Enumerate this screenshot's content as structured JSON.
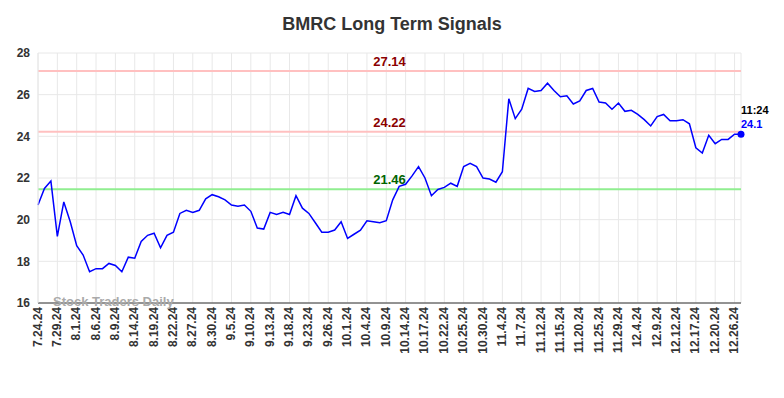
{
  "chart_data": {
    "type": "line",
    "title": "BMRC Long Term Signals",
    "categories": [
      "7.24.24",
      null,
      null,
      "7.29.24",
      null,
      null,
      "8.1.24",
      null,
      null,
      "8.6.24",
      null,
      null,
      "8.9.24",
      null,
      null,
      "8.14.24",
      null,
      null,
      "8.19.24",
      null,
      null,
      "8.22.24",
      null,
      null,
      "8.27.24",
      null,
      null,
      "8.30.24",
      null,
      null,
      "9.5.24",
      null,
      null,
      "9.10.24",
      null,
      null,
      "9.13.24",
      null,
      null,
      "9.18.24",
      null,
      null,
      "9.23.24",
      null,
      null,
      "9.26.24",
      null,
      null,
      "10.1.24",
      null,
      null,
      "10.4.24",
      null,
      null,
      "10.9.24",
      null,
      null,
      "10.14.24",
      null,
      null,
      "10.17.24",
      null,
      null,
      "10.22.24",
      null,
      null,
      "10.25.24",
      null,
      null,
      "10.30.24",
      null,
      null,
      "11.4.24",
      null,
      null,
      "11.7.24",
      null,
      null,
      "11.12.24",
      null,
      null,
      "11.15.24",
      null,
      null,
      "11.20.24",
      null,
      null,
      "11.25.24",
      null,
      null,
      "11.29.24",
      null,
      null,
      "12.4.24",
      null,
      null,
      "12.9.24",
      null,
      null,
      "12.12.24",
      null,
      null,
      "12.17.24",
      null,
      null,
      "12.20.24",
      null,
      null,
      "12.26.24",
      null
    ],
    "values": [
      20.7,
      21.5,
      21.85,
      19.2,
      20.85,
      19.9,
      18.75,
      18.3,
      17.5,
      17.65,
      17.65,
      17.9,
      17.8,
      17.5,
      18.2,
      18.15,
      18.95,
      19.25,
      19.35,
      18.65,
      19.25,
      19.4,
      20.3,
      20.45,
      20.35,
      20.45,
      21.0,
      21.2,
      21.1,
      20.95,
      20.7,
      20.65,
      20.7,
      20.4,
      19.6,
      19.55,
      20.35,
      20.25,
      20.35,
      20.25,
      21.15,
      20.55,
      20.3,
      19.85,
      19.4,
      19.4,
      19.5,
      19.9,
      19.1,
      19.3,
      19.5,
      19.95,
      19.9,
      19.85,
      19.95,
      20.95,
      21.6,
      21.7,
      22.1,
      22.55,
      22.0,
      21.15,
      21.45,
      21.55,
      21.75,
      21.6,
      22.55,
      22.7,
      22.55,
      22.0,
      21.95,
      21.8,
      22.3,
      25.8,
      24.85,
      25.3,
      26.3,
      26.15,
      26.2,
      26.55,
      26.2,
      25.9,
      25.95,
      25.55,
      25.7,
      26.2,
      26.3,
      25.65,
      25.6,
      25.3,
      25.6,
      25.2,
      25.25,
      25.05,
      24.8,
      24.5,
      24.95,
      25.05,
      24.75,
      24.75,
      24.8,
      24.6,
      23.45,
      23.2,
      24.05,
      23.65,
      23.85,
      23.85,
      24.1,
      24.1
    ],
    "color": "#0000ff",
    "ylim": [
      16,
      28
    ],
    "yticks": [
      16,
      18,
      20,
      22,
      24,
      26,
      28
    ],
    "grid": true,
    "annotations": [
      {
        "value": 27.14,
        "label": "27.14",
        "color": "#ffc0c0"
      },
      {
        "value": 24.22,
        "label": "24.22",
        "color": "#ffc0c0"
      },
      {
        "value": 21.46,
        "label": "21.46",
        "color": "#90ee90"
      }
    ],
    "watermark": "Stock Traders Daily",
    "last_point": {
      "label": "11:24",
      "value": 24.1
    }
  }
}
